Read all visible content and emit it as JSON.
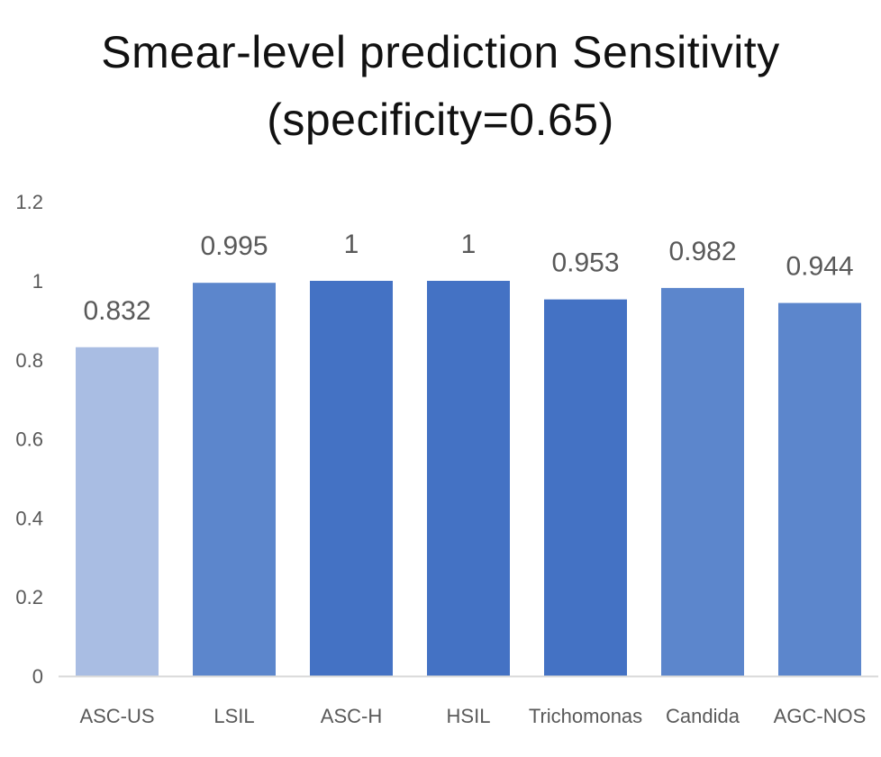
{
  "chart_data": {
    "type": "bar",
    "title": "Smear-level prediction Sensitivity",
    "subtitle": "(specificity=0.65)",
    "xlabel": "",
    "ylabel": "",
    "categories": [
      "ASC-US",
      "LSIL",
      "ASC-H",
      "HSIL",
      "Trichomonas",
      "Candida",
      "AGC-NOS"
    ],
    "values": [
      0.832,
      0.995,
      1,
      1,
      0.953,
      0.982,
      0.944
    ],
    "data_labels": [
      "0.832",
      "0.995",
      "1",
      "1",
      "0.953",
      "0.982",
      "0.944"
    ],
    "ylim": [
      0,
      1.2
    ],
    "yticks": [
      0,
      0.2,
      0.4,
      0.6,
      0.8,
      1,
      1.2
    ],
    "ytick_labels": [
      "0",
      "0.2",
      "0.4",
      "0.6",
      "0.8",
      "1",
      "1.2"
    ],
    "bar_colors": [
      "#A9BDE3",
      "#5C86CC",
      "#4472C4",
      "#4472C4",
      "#4472C4",
      "#5C86CC",
      "#5C86CC"
    ],
    "axis_color": "#D9D9D9",
    "text_color": "#595959",
    "grid": false,
    "legend": "none"
  }
}
